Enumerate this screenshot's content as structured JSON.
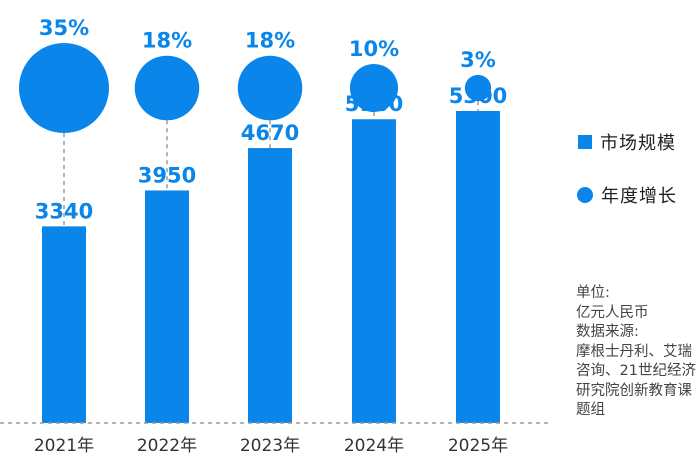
{
  "chart_data": {
    "type": "bar",
    "categories": [
      "2021年",
      "2022年",
      "2023年",
      "2024年",
      "2025年"
    ],
    "series": [
      {
        "name": "市场规模",
        "values": [
          3340,
          3950,
          4670,
          5160,
          5300
        ],
        "labels": [
          "3340",
          "3950",
          "4670",
          "5160",
          "5300"
        ]
      },
      {
        "name": "年度增长",
        "values": [
          35,
          18,
          18,
          10,
          3
        ],
        "labels": [
          "35%",
          "18%",
          "18%",
          "10%",
          "3%"
        ]
      }
    ],
    "ylim": [
      0,
      6200
    ],
    "grid": false,
    "legend_position": "right",
    "colors": {
      "bar": "#0a86ea",
      "bubble": "#0a86ea",
      "label": "#0a86ea",
      "connector": "#9a9a9a",
      "axis": "#9a9a9a"
    }
  },
  "legend": {
    "market": "市场规模",
    "growth": "年度增长"
  },
  "note": {
    "unit_title": "单位:",
    "unit": "亿元人民币",
    "source_title": "数据来源:",
    "source": "摩根士丹利、艾瑞咨询、21世纪经济研究院创新教育课题组"
  }
}
